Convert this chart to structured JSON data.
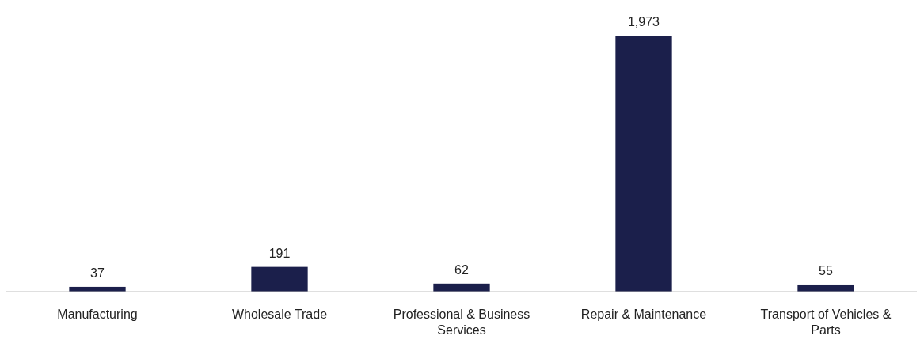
{
  "chart_data": {
    "type": "bar",
    "categories": [
      "Manufacturing",
      "Wholesale Trade",
      "Professional & Business Services",
      "Repair & Maintenance",
      "Transport of Vehicles & Parts"
    ],
    "values": [
      37,
      191,
      62,
      1973,
      55
    ],
    "color": "#1b1f4b",
    "value_labels": [
      "37",
      "191",
      "62",
      "1,973",
      "55"
    ]
  }
}
